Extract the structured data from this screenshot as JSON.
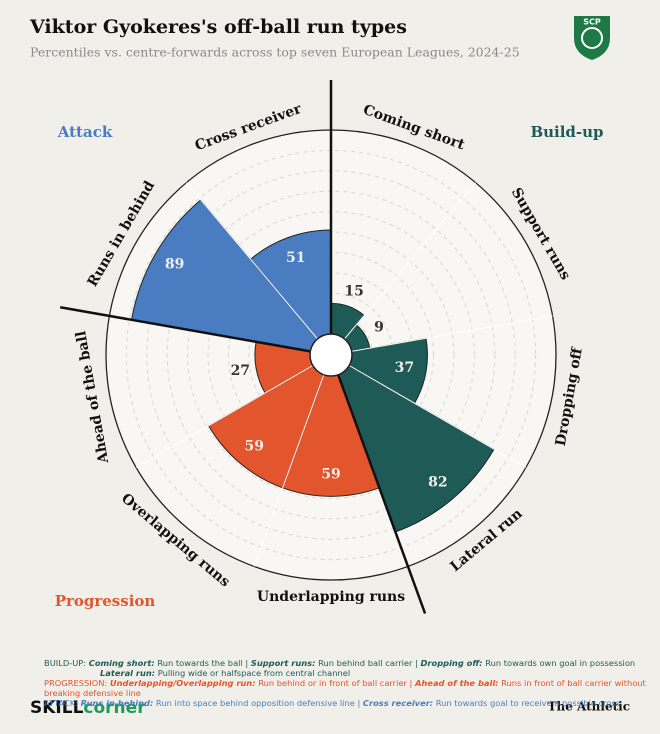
{
  "chart_data": {
    "type": "polar_bar",
    "title": "Viktor Gyokeres's off-ball run types",
    "subtitle": "Percentiles vs. centre-forwards across top seven European Leagues, 2024-25",
    "badge": "SCP",
    "ylim": [
      0,
      100
    ],
    "yticks": [
      10,
      20,
      30,
      40,
      50,
      60,
      70,
      80,
      90,
      100
    ],
    "series": [
      {
        "name": "Build-up",
        "color": "#1e5a56",
        "categories": [
          "Coming short",
          "Support runs",
          "Dropping off",
          "Lateral run"
        ],
        "values": [
          15,
          9,
          37,
          82
        ]
      },
      {
        "name": "Progression",
        "color": "#e3552c",
        "categories": [
          "Underlapping runs",
          "Overlapping runs",
          "Ahead of the ball"
        ],
        "values": [
          59,
          59,
          27
        ]
      },
      {
        "name": "Attack",
        "color": "#4a7cc2",
        "categories": [
          "Runs in behind",
          "Cross receiver"
        ],
        "values": [
          89,
          51
        ]
      }
    ]
  },
  "notes": {
    "build_up": [
      "BUILD-UP:",
      "Coming short:",
      "Run towards the ball |",
      "Support runs:",
      "Run behind ball carrier |",
      "Dropping off:",
      "Run towards own goal in possession",
      "Lateral run:",
      "Pulling wide or halfspace from central channel"
    ],
    "progression": [
      "PROGRESSION:",
      "Underlapping/Overlapping run:",
      "Run behind or in front of ball carrier |",
      "Ahead of the ball:",
      "Runs in front of ball carrier without breaking defensive line"
    ],
    "attack": [
      "ATTACK:",
      "Runs in behind:",
      "Run into space behind opposition defensive line |",
      "Cross receiver:",
      "Run towards goal to receive a possible cross"
    ]
  },
  "footer": {
    "left_a": "SKILL",
    "left_b": "corner",
    "right": "The Athletic"
  }
}
